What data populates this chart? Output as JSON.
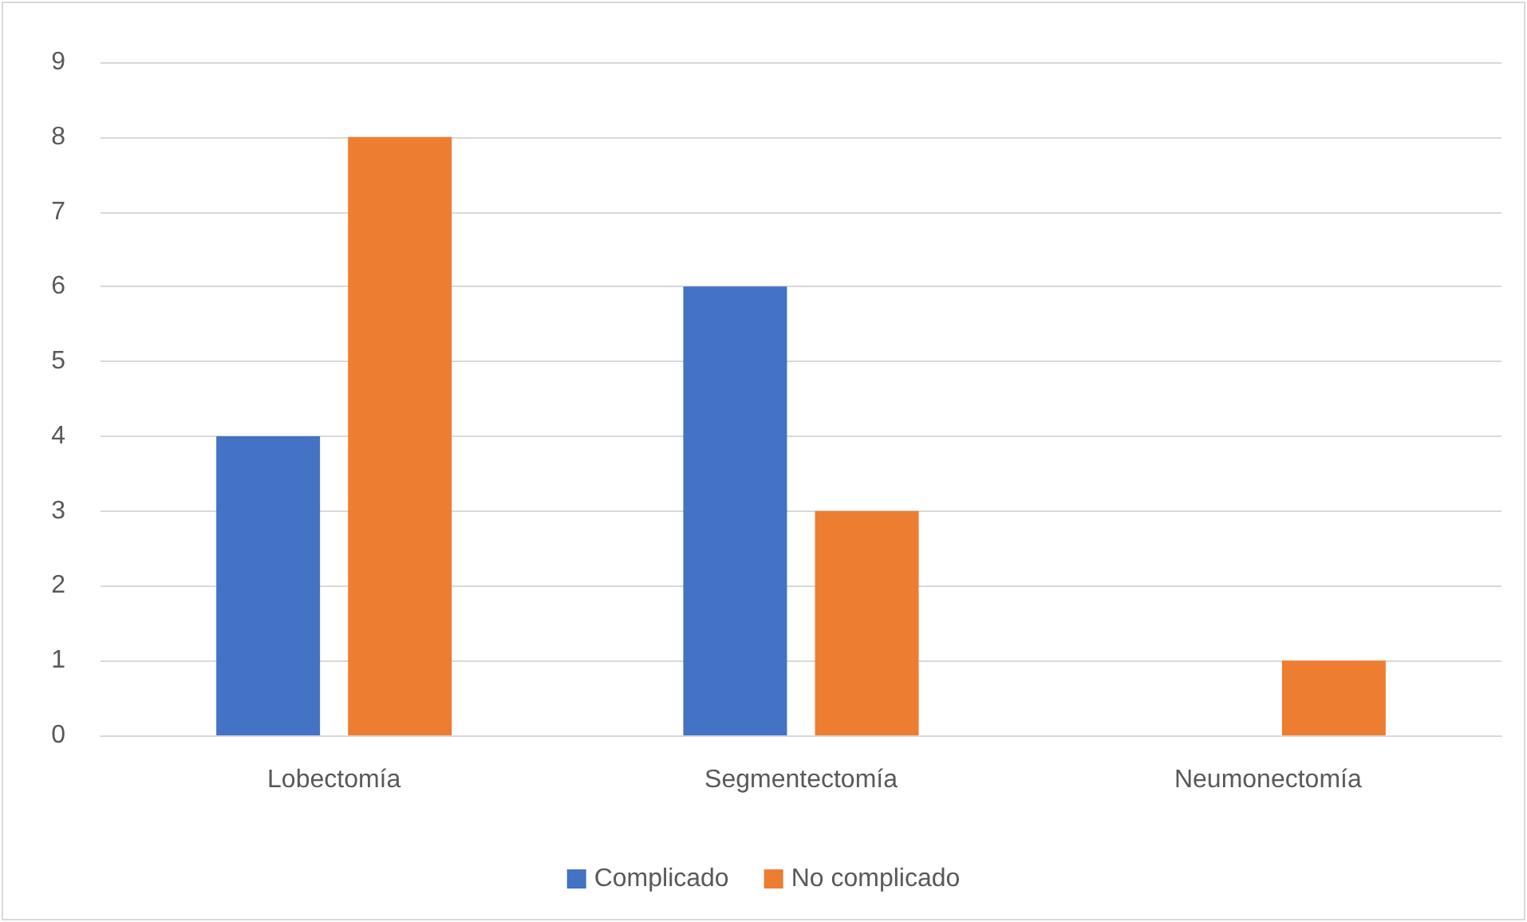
{
  "chart_data": {
    "type": "bar",
    "categories": [
      "Lobectomía",
      "Segmentectomía",
      "Neumonectomía"
    ],
    "series": [
      {
        "name": "Complicado",
        "color": "#4472c4",
        "values": [
          4,
          6,
          0
        ]
      },
      {
        "name": "No complicado",
        "color": "#ed7d31",
        "values": [
          8,
          3,
          1
        ]
      }
    ],
    "ylim": [
      0,
      9
    ],
    "yticks": [
      0,
      1,
      2,
      3,
      4,
      5,
      6,
      7,
      8,
      9
    ],
    "grid": "y",
    "legend": "bottom"
  }
}
